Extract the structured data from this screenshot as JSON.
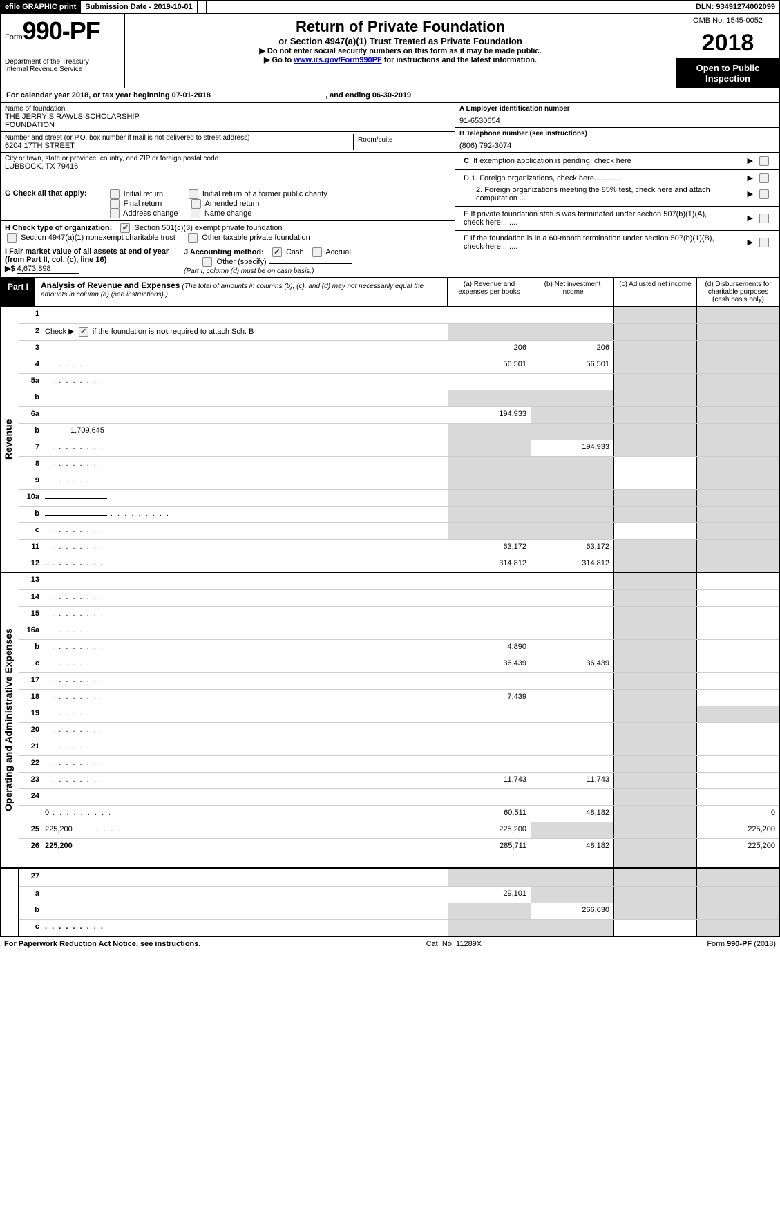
{
  "topbar": {
    "efile": "efile GRAPHIC print",
    "subdate_label": "Submission Date - ",
    "subdate": "2019-10-01",
    "dln_label": "DLN: ",
    "dln": "93491274002099"
  },
  "head": {
    "form_prefix": "Form",
    "form_no": "990-PF",
    "dept1": "Department of the Treasury",
    "dept2": "Internal Revenue Service",
    "title1": "Return of Private Foundation",
    "title2": "or Section 4947(a)(1) Trust Treated as Private Foundation",
    "title3a": "▶ Do not enter social security numbers on this form as it may be made public.",
    "title3b_pre": "▶ Go to ",
    "title3b_link": "www.irs.gov/Form990PF",
    "title3b_post": " for instructions and the latest information.",
    "omb": "OMB No. 1545-0052",
    "year": "2018",
    "openpub": "Open to Public Inspection"
  },
  "cal": {
    "text_a": "For calendar year 2018, or tax year beginning ",
    "begin": "07-01-2018",
    "text_b": ", and ending ",
    "end": "06-30-2019"
  },
  "entity": {
    "name_label": "Name of foundation",
    "name1": "THE JERRY S RAWLS SCHOLARSHIP",
    "name2": "FOUNDATION",
    "addr_label": "Number and street (or P.O. box number if mail is not delivered to street address)",
    "addr": "6204 17TH STREET",
    "room_label": "Room/suite",
    "city_label": "City or town, state or province, country, and ZIP or foreign postal code",
    "city": "LUBBOCK, TX  79416",
    "ein_label": "A Employer identification number",
    "ein": "91-6530654",
    "phone_label": "B Telephone number (see instructions)",
    "phone": "(806) 792-3074",
    "c_label": "C  If exemption application is pending, check here",
    "d1": "D 1. Foreign organizations, check here.............",
    "d2": "2. Foreign organizations meeting the 85% test, check here and attach computation ...",
    "e": "E   If private foundation status was terminated under section 507(b)(1)(A), check here .......",
    "f": "F   If the foundation is in a 60-month termination under section 507(b)(1)(B), check here ......."
  },
  "g": {
    "label": "G Check all that apply:",
    "o1": "Initial return",
    "o2": "Initial return of a former public charity",
    "o3": "Final return",
    "o4": "Amended return",
    "o5": "Address change",
    "o6": "Name change"
  },
  "h": {
    "label": "H Check type of organization:",
    "o1": "Section 501(c)(3) exempt private foundation",
    "o2": "Section 4947(a)(1) nonexempt charitable trust",
    "o3": "Other taxable private foundation"
  },
  "i": {
    "label": "I Fair market value of all assets at end of year (from Part II, col. (c), line 16)",
    "arrow": "▶$",
    "value": "4,673,898"
  },
  "j": {
    "label": "J Accounting method:",
    "o1": "Cash",
    "o2": "Accrual",
    "o3": "Other (specify)",
    "note": "(Part I, column (d) must be on cash basis.)"
  },
  "part1": {
    "tag": "Part I",
    "title": "Analysis of Revenue and Expenses",
    "note": "(The total of amounts in columns (b), (c), and (d) may not necessarily equal the amounts in column (a) (see instructions).)",
    "col_a": "(a)     Revenue and expenses per books",
    "col_b": "(b)     Net investment income",
    "col_c": "(c)     Adjusted net income",
    "col_d": "(d)     Disbursements for charitable purposes (cash basis only)"
  },
  "rev": {
    "side": "Revenue",
    "rows": [
      {
        "n": "1",
        "d": "",
        "a": "",
        "b": "",
        "c": "",
        "cs": true,
        "ds": true
      },
      {
        "n": "2",
        "d": "",
        "a": "",
        "b": "",
        "c": "",
        "dots": true,
        "cs": true,
        "ds": true,
        "bs": true,
        "as": true,
        "raw": true
      },
      {
        "n": "3",
        "d": "",
        "a": "206",
        "b": "206",
        "c": "",
        "cs": true,
        "ds": true
      },
      {
        "n": "4",
        "d": "",
        "a": "56,501",
        "b": "56,501",
        "c": "",
        "dots": true,
        "cs": true,
        "ds": true
      },
      {
        "n": "5a",
        "d": "",
        "a": "",
        "b": "",
        "c": "",
        "dots": true,
        "cs": true,
        "ds": true
      },
      {
        "n": "b",
        "d": "",
        "a": "",
        "b": "",
        "c": "",
        "bs": true,
        "cs": true,
        "ds": true,
        "as": true,
        "inline": true
      },
      {
        "n": "6a",
        "d": "",
        "a": "194,933",
        "b": "",
        "c": "",
        "bs": true,
        "cs": true,
        "ds": true
      },
      {
        "n": "b",
        "d": "",
        "a": "",
        "b": "",
        "c": "",
        "bs": true,
        "cs": true,
        "ds": true,
        "as": true,
        "inline": true,
        "inline_val": "1,709,645"
      },
      {
        "n": "7",
        "d": "",
        "a": "",
        "b": "194,933",
        "c": "",
        "dots": true,
        "as": true,
        "cs": true,
        "ds": true
      },
      {
        "n": "8",
        "d": "",
        "a": "",
        "b": "",
        "c": "",
        "dots": true,
        "as": true,
        "bs": true,
        "ds": true
      },
      {
        "n": "9",
        "d": "",
        "a": "",
        "b": "",
        "c": "",
        "dots": true,
        "as": true,
        "bs": true,
        "ds": true
      },
      {
        "n": "10a",
        "d": "",
        "a": "",
        "b": "",
        "c": "",
        "as": true,
        "bs": true,
        "cs": true,
        "ds": true,
        "inline": true
      },
      {
        "n": "b",
        "d": "",
        "a": "",
        "b": "",
        "c": "",
        "dots": true,
        "as": true,
        "bs": true,
        "cs": true,
        "ds": true,
        "inline": true
      },
      {
        "n": "c",
        "d": "",
        "a": "",
        "b": "",
        "c": "",
        "dots": true,
        "as": true,
        "bs": true,
        "ds": true
      },
      {
        "n": "11",
        "d": "",
        "a": "63,172",
        "b": "63,172",
        "c": "",
        "dots": true,
        "cs": true,
        "ds": true
      },
      {
        "n": "12",
        "d": "",
        "a": "314,812",
        "b": "314,812",
        "c": "",
        "dots": true,
        "bold": true,
        "cs": true,
        "ds": true
      }
    ]
  },
  "exp": {
    "side": "Operating and Administrative Expenses",
    "rows": [
      {
        "n": "13",
        "d": "",
        "a": "",
        "b": "",
        "c": "",
        "cs": true
      },
      {
        "n": "14",
        "d": "",
        "a": "",
        "b": "",
        "c": "",
        "dots": true,
        "cs": true
      },
      {
        "n": "15",
        "d": "",
        "a": "",
        "b": "",
        "c": "",
        "dots": true,
        "cs": true
      },
      {
        "n": "16a",
        "d": "",
        "a": "",
        "b": "",
        "c": "",
        "dots": true,
        "cs": true
      },
      {
        "n": "b",
        "d": "",
        "a": "4,890",
        "b": "",
        "c": "",
        "dots": true,
        "cs": true
      },
      {
        "n": "c",
        "d": "",
        "a": "36,439",
        "b": "36,439",
        "c": "",
        "dots": true,
        "cs": true
      },
      {
        "n": "17",
        "d": "",
        "a": "",
        "b": "",
        "c": "",
        "dots": true,
        "cs": true
      },
      {
        "n": "18",
        "d": "",
        "a": "7,439",
        "b": "",
        "c": "",
        "dots": true,
        "cs": true
      },
      {
        "n": "19",
        "d": "",
        "a": "",
        "b": "",
        "c": "",
        "dots": true,
        "cs": true,
        "ds": true
      },
      {
        "n": "20",
        "d": "",
        "a": "",
        "b": "",
        "c": "",
        "dots": true,
        "cs": true
      },
      {
        "n": "21",
        "d": "",
        "a": "",
        "b": "",
        "c": "",
        "dots": true,
        "cs": true
      },
      {
        "n": "22",
        "d": "",
        "a": "",
        "b": "",
        "c": "",
        "dots": true,
        "cs": true
      },
      {
        "n": "23",
        "d": "",
        "a": "11,743",
        "b": "11,743",
        "c": "",
        "dots": true,
        "cs": true
      },
      {
        "n": "24",
        "d": "",
        "a": "",
        "b": "",
        "c": "",
        "bold": true,
        "cs": true,
        "noborder": true
      },
      {
        "n": "",
        "d": "0",
        "a": "60,511",
        "b": "48,182",
        "c": "",
        "dots": true,
        "cs": true
      },
      {
        "n": "25",
        "d": "225,200",
        "a": "225,200",
        "b": "",
        "c": "",
        "dots": true,
        "bs": true,
        "cs": true
      },
      {
        "n": "26",
        "d": "225,200",
        "a": "285,711",
        "b": "48,182",
        "c": "",
        "bold": true,
        "cs": true,
        "tall": true
      }
    ]
  },
  "net": {
    "rows": [
      {
        "n": "27",
        "d": "",
        "a": "",
        "b": "",
        "c": "",
        "as": true,
        "bs": true,
        "cs": true,
        "ds": true
      },
      {
        "n": "a",
        "d": "",
        "a": "29,101",
        "b": "",
        "c": "",
        "bold": true,
        "bs": true,
        "cs": true,
        "ds": true
      },
      {
        "n": "b",
        "d": "",
        "a": "",
        "b": "266,630",
        "c": "",
        "bold": true,
        "as": true,
        "cs": true,
        "ds": true
      },
      {
        "n": "c",
        "d": "",
        "a": "",
        "b": "",
        "c": "",
        "bold": true,
        "dots": true,
        "as": true,
        "bs": true,
        "ds": true
      }
    ]
  },
  "footer": {
    "left": "For Paperwork Reduction Act Notice, see instructions.",
    "mid": "Cat. No. 11289X",
    "right_pre": "Form ",
    "right_form": "990-PF",
    "right_post": " (2018)"
  }
}
